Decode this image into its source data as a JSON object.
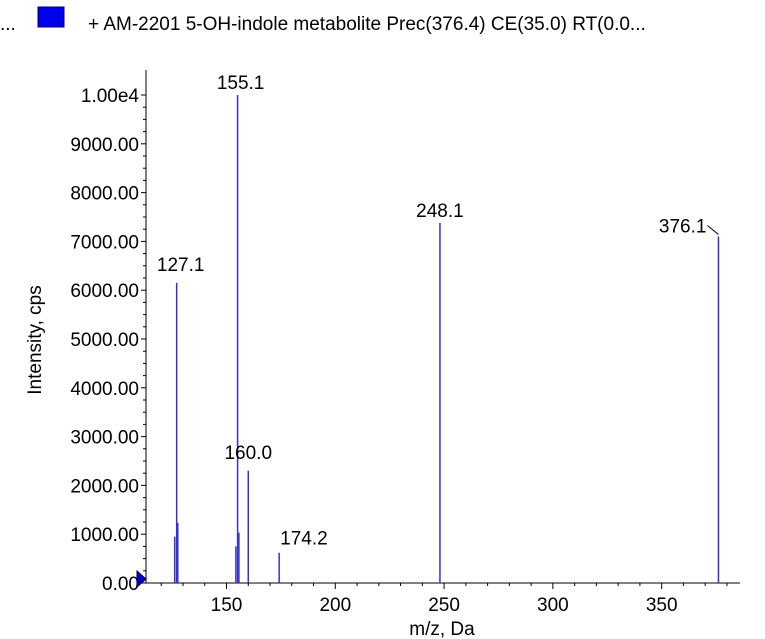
{
  "header": {
    "left_ellipsis": "...",
    "legend_color": "#0000ee",
    "title": "+ AM-2201 5-OH-indole metabolite Prec(376.4) CE(35.0) RT(0.0..."
  },
  "chart_data": {
    "type": "bar",
    "title": "+ AM-2201 5-OH-indole metabolite Prec(376.4) CE(35.0) RT(0.0...",
    "xlabel": "m/z, Da",
    "ylabel": "Intensity, cps",
    "xlim": [
      113,
      386
    ],
    "ylim": [
      0,
      10000
    ],
    "x_ticks": [
      150,
      200,
      250,
      300,
      350
    ],
    "y_ticks": [
      {
        "value": 0,
        "label": "0.00"
      },
      {
        "value": 1000,
        "label": "1000.00"
      },
      {
        "value": 2000,
        "label": "2000.00"
      },
      {
        "value": 3000,
        "label": "3000.00"
      },
      {
        "value": 4000,
        "label": "4000.00"
      },
      {
        "value": 5000,
        "label": "5000.00"
      },
      {
        "value": 6000,
        "label": "6000.00"
      },
      {
        "value": 7000,
        "label": "7000.00"
      },
      {
        "value": 8000,
        "label": "8000.00"
      },
      {
        "value": 9000,
        "label": "9000.00"
      },
      {
        "value": 10000,
        "label": "1.00e4"
      }
    ],
    "peak_color": "#3333cc",
    "peaks": [
      {
        "x": 126.2,
        "y": 950
      },
      {
        "x": 127.1,
        "y": 6150
      },
      {
        "x": 127.6,
        "y": 1230
      },
      {
        "x": 154.3,
        "y": 750
      },
      {
        "x": 155.1,
        "y": 10000
      },
      {
        "x": 155.7,
        "y": 1030
      },
      {
        "x": 160.0,
        "y": 2300
      },
      {
        "x": 174.2,
        "y": 620
      },
      {
        "x": 248.1,
        "y": 7380
      },
      {
        "x": 376.1,
        "y": 7100
      }
    ],
    "annotations": [
      {
        "text": "155.1",
        "x": 155.1,
        "y": 10000
      },
      {
        "text": "127.1",
        "x": 127.1,
        "y": 6150
      },
      {
        "text": "160.0",
        "x": 160.0,
        "y": 2300
      },
      {
        "text": "174.2",
        "x": 174.2,
        "y": 620
      },
      {
        "text": "248.1",
        "x": 248.1,
        "y": 7380
      },
      {
        "text": "376.1",
        "x": 376.1,
        "y": 7100
      }
    ]
  }
}
